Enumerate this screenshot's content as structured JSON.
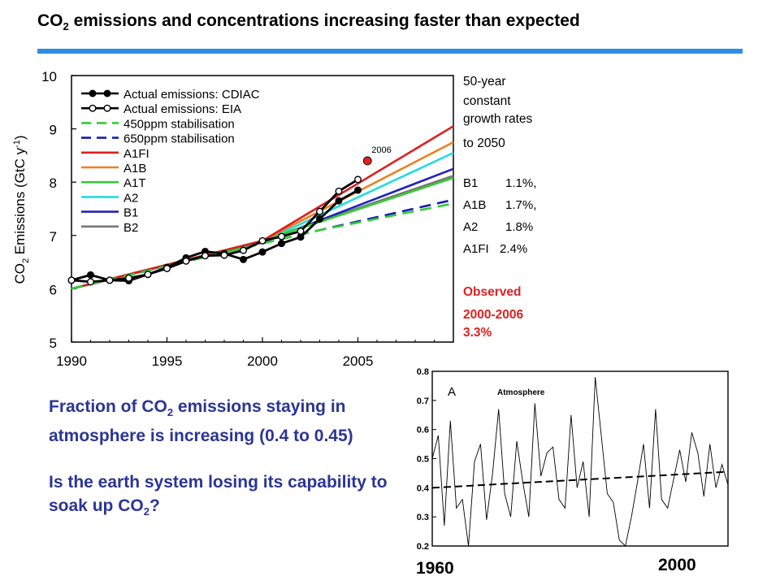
{
  "slide": {
    "title_prefix": "CO",
    "title_sub": "2",
    "title_rest": " emissions and concentrations increasing faster than expected",
    "accent_color": "#2f8de4"
  },
  "chart_data": [
    {
      "type": "line",
      "title": "",
      "xlabel": "",
      "ylabel": "CO2 Emissions (GtC y-1)",
      "xlim": [
        1990,
        2010
      ],
      "ylim": [
        5,
        10
      ],
      "x_ticks": [
        1990,
        1995,
        2000,
        2005
      ],
      "y_ticks": [
        5,
        6,
        7,
        8,
        9,
        10
      ],
      "grid": false,
      "legend_position": "top-left",
      "series": [
        {
          "name": "Actual emissions: CDIAC",
          "style": "solid-filled-markers",
          "color": "#000000",
          "x": [
            1990,
            1991,
            1992,
            1993,
            1994,
            1995,
            1996,
            1997,
            1998,
            1999,
            2000,
            2001,
            2002,
            2003,
            2004,
            2005
          ],
          "y": [
            6.16,
            6.26,
            6.16,
            6.15,
            6.27,
            6.4,
            6.58,
            6.7,
            6.66,
            6.55,
            6.69,
            6.85,
            6.97,
            7.31,
            7.65,
            7.85
          ]
        },
        {
          "name": "Actual emissions: EIA",
          "style": "solid-open-markers",
          "color": "#000000",
          "x": [
            1990,
            1991,
            1992,
            1993,
            1994,
            1995,
            1996,
            1997,
            1998,
            1999,
            2000,
            2001,
            2002,
            2003,
            2004,
            2005
          ],
          "y": [
            6.16,
            6.13,
            6.16,
            6.2,
            6.27,
            6.38,
            6.52,
            6.62,
            6.63,
            6.72,
            6.9,
            6.98,
            7.08,
            7.45,
            7.83,
            8.05
          ]
        },
        {
          "name": "450ppm stabilisation",
          "style": "dashed",
          "color": "#33cc33",
          "x": [
            1990,
            2000,
            2003,
            2010
          ],
          "y": [
            6.0,
            6.85,
            7.1,
            7.6
          ]
        },
        {
          "name": "650ppm stabilisation",
          "style": "dashed",
          "color": "#1a1ab5",
          "x": [
            1990,
            2000,
            2003,
            2010
          ],
          "y": [
            6.0,
            6.85,
            7.1,
            7.67
          ]
        },
        {
          "name": "A1FI",
          "style": "solid",
          "color": "#dd1f1f",
          "x": [
            1990,
            2000,
            2010
          ],
          "y": [
            6.0,
            6.9,
            9.05
          ]
        },
        {
          "name": "A1B",
          "style": "solid",
          "color": "#ee7f22",
          "x": [
            1990,
            2000,
            2010
          ],
          "y": [
            6.0,
            6.9,
            8.75
          ]
        },
        {
          "name": "A1T",
          "style": "solid",
          "color": "#33cc33",
          "x": [
            1990,
            2000,
            2010
          ],
          "y": [
            6.0,
            6.9,
            8.08
          ]
        },
        {
          "name": "A2",
          "style": "solid",
          "color": "#22dddd",
          "x": [
            1990,
            2000,
            2010
          ],
          "y": [
            6.0,
            6.88,
            8.55
          ]
        },
        {
          "name": "B1",
          "style": "solid",
          "color": "#2222bb",
          "x": [
            1990,
            2000,
            2010
          ],
          "y": [
            6.0,
            6.87,
            8.25
          ]
        },
        {
          "name": "B2",
          "style": "solid",
          "color": "#777777",
          "x": [
            1990,
            2000,
            2010
          ],
          "y": [
            6.0,
            6.9,
            8.12
          ]
        }
      ],
      "annotations": [
        {
          "text": "2006",
          "x": 2005.5,
          "y": 8.4,
          "marker_color": "#e02020"
        }
      ],
      "side_panel": {
        "heading": [
          "50-year",
          "constant",
          "growth rates",
          "to 2050"
        ],
        "rates": [
          {
            "scenario": "B1",
            "rate": "1.1%,"
          },
          {
            "scenario": "A1B",
            "rate": "1.7%,"
          },
          {
            "scenario": "A2",
            "rate": "1.8%"
          },
          {
            "scenario": "A1FI",
            "rate": "2.4%"
          }
        ],
        "observed": [
          "Observed",
          "2000-2006",
          "3.3%"
        ],
        "observed_color": "#e02020"
      }
    },
    {
      "type": "line",
      "title": "Atmosphere",
      "panel_letter": "A",
      "xlabel": "",
      "ylabel": "",
      "xlim": [
        1957,
        2006
      ],
      "ylim": [
        0.2,
        0.8
      ],
      "y_ticks": [
        0.2,
        0.3,
        0.4,
        0.5,
        0.6,
        0.7,
        0.8
      ],
      "x_ticks": [
        "1960",
        "2000"
      ],
      "grid": false,
      "series": [
        {
          "name": "",
          "style": "solid-thin",
          "color": "#000000",
          "x": [
            1957,
            1958,
            1959,
            1960,
            1961,
            1962,
            1963,
            1964,
            1965,
            1966,
            1967,
            1968,
            1969,
            1970,
            1971,
            1972,
            1973,
            1974,
            1975,
            1976,
            1977,
            1978,
            1979,
            1980,
            1981,
            1982,
            1983,
            1984,
            1985,
            1986,
            1987,
            1988,
            1989,
            1990,
            1991,
            1992,
            1993,
            1994,
            1995,
            1996,
            1997,
            1998,
            1999,
            2000,
            2001,
            2002,
            2003,
            2004,
            2005,
            2006
          ],
          "y": [
            0.5,
            0.58,
            0.27,
            0.63,
            0.33,
            0.36,
            0.2,
            0.49,
            0.55,
            0.29,
            0.45,
            0.67,
            0.38,
            0.3,
            0.56,
            0.42,
            0.3,
            0.69,
            0.44,
            0.52,
            0.54,
            0.36,
            0.33,
            0.65,
            0.4,
            0.49,
            0.3,
            0.78,
            0.58,
            0.38,
            0.35,
            0.22,
            0.2,
            0.3,
            0.42,
            0.55,
            0.33,
            0.67,
            0.36,
            0.33,
            0.43,
            0.53,
            0.42,
            0.59,
            0.52,
            0.37,
            0.55,
            0.4,
            0.48,
            0.41
          ]
        },
        {
          "name": "",
          "style": "dashed-trend",
          "color": "#000000",
          "x": [
            1957,
            2006
          ],
          "y": [
            0.4,
            0.455
          ]
        }
      ]
    }
  ],
  "note": {
    "para1": [
      "Fraction of CO",
      "2",
      " emissions staying in atmosphere is increasing (0.4 to 0.45)"
    ],
    "para2": [
      "Is the earth system losing its capability to soak up CO",
      "2",
      "?"
    ]
  },
  "bottom_labels": {
    "left": "1960",
    "right": "2000"
  }
}
